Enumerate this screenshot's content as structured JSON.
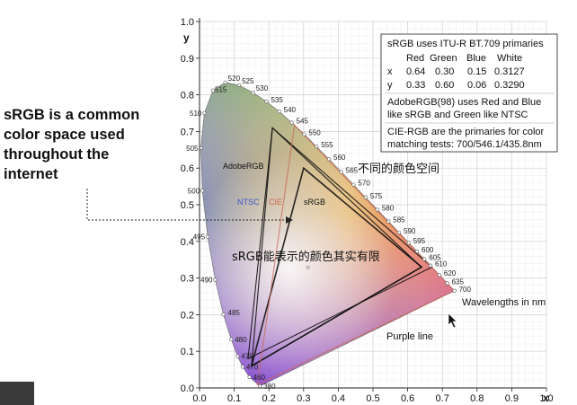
{
  "callout": {
    "lines": [
      "sRGB is a common",
      "color space used",
      "throughout the",
      "internet"
    ]
  },
  "axes": {
    "x_label": "x",
    "y_label": "y",
    "x_ticks": [
      "0.0",
      "0.1",
      "0.2",
      "0.3",
      "0.4",
      "0.5",
      "0.6",
      "0.7",
      "0.8",
      "0.9",
      "1.0"
    ],
    "y_ticks": [
      "0.0",
      "0.1",
      "0.2",
      "0.3",
      "0.4",
      "0.5",
      "0.6",
      "0.7",
      "0.8",
      "0.9",
      "1.0"
    ]
  },
  "legend": {
    "title": "sRGB uses ITU-R BT.709 primaries",
    "header": [
      "Red",
      "Green",
      "Blue",
      "White"
    ],
    "row_x": [
      "x",
      "0.64",
      "0.30",
      "0.15",
      "0.3127"
    ],
    "row_y": [
      "y",
      "0.33",
      "0.60",
      "0.06",
      "0.3290"
    ],
    "adobe_line1": "AdobeRGB(98) uses Red and Blue",
    "adobe_line2": "like sRGB and Green like NTSC",
    "cie_line1": "CIE-RGB are the primaries for color",
    "cie_line2": "matching tests: 700/546.1/435.8nm"
  },
  "labels": {
    "adobe": "AdobeRGB",
    "ntsc": "NTSC",
    "cie": "CIE",
    "srgb": "sRGB",
    "wavelengths": "Wavelengths in nm",
    "purple_line": "Purple line"
  },
  "overlays": {
    "gamut_note": "不同的颜色空间",
    "srgb_note": "sRGB能表示的颜色其实有限"
  },
  "colors": {
    "ntsc_label": "#3a55c8",
    "cie_label": "#d06048",
    "gamut_line": "#111111",
    "cie_line": "#c86a5a"
  },
  "chart_data": {
    "type": "diagram",
    "xlim": [
      0,
      1.0
    ],
    "ylim": [
      0,
      1.0
    ],
    "spectral_locus": [
      {
        "nm": "380",
        "x": 0.1741,
        "y": 0.005
      },
      {
        "nm": "460",
        "x": 0.144,
        "y": 0.0297
      },
      {
        "nm": "470",
        "x": 0.1241,
        "y": 0.0578
      },
      {
        "nm": "475",
        "x": 0.1096,
        "y": 0.0868
      },
      {
        "nm": "480",
        "x": 0.0913,
        "y": 0.1327
      },
      {
        "nm": "485",
        "x": 0.0687,
        "y": 0.2007
      },
      {
        "nm": "490",
        "x": 0.0454,
        "y": 0.295
      },
      {
        "nm": "495",
        "x": 0.0235,
        "y": 0.4127
      },
      {
        "nm": "500",
        "x": 0.0082,
        "y": 0.5384
      },
      {
        "nm": "505",
        "x": 0.0039,
        "y": 0.6548
      },
      {
        "nm": "510",
        "x": 0.0139,
        "y": 0.7502
      },
      {
        "nm": "515",
        "x": 0.0389,
        "y": 0.812
      },
      {
        "nm": "520",
        "x": 0.0743,
        "y": 0.8338
      },
      {
        "nm": "525",
        "x": 0.1142,
        "y": 0.8262
      },
      {
        "nm": "530",
        "x": 0.1547,
        "y": 0.8059
      },
      {
        "nm": "535",
        "x": 0.1929,
        "y": 0.7816
      },
      {
        "nm": "540",
        "x": 0.2296,
        "y": 0.7543
      },
      {
        "nm": "545",
        "x": 0.2658,
        "y": 0.7243
      },
      {
        "nm": "550",
        "x": 0.3016,
        "y": 0.6923
      },
      {
        "nm": "555",
        "x": 0.3373,
        "y": 0.6589
      },
      {
        "nm": "560",
        "x": 0.3731,
        "y": 0.6245
      },
      {
        "nm": "565",
        "x": 0.4087,
        "y": 0.5896
      },
      {
        "nm": "570",
        "x": 0.4441,
        "y": 0.5547
      },
      {
        "nm": "575",
        "x": 0.4788,
        "y": 0.5202
      },
      {
        "nm": "580",
        "x": 0.5125,
        "y": 0.4866
      },
      {
        "nm": "585",
        "x": 0.5448,
        "y": 0.4544
      },
      {
        "nm": "590",
        "x": 0.5752,
        "y": 0.4242
      },
      {
        "nm": "595",
        "x": 0.6029,
        "y": 0.3965
      },
      {
        "nm": "600",
        "x": 0.627,
        "y": 0.3725
      },
      {
        "nm": "605",
        "x": 0.6482,
        "y": 0.3514
      },
      {
        "nm": "610",
        "x": 0.6658,
        "y": 0.334
      },
      {
        "nm": "620",
        "x": 0.6915,
        "y": 0.3083
      },
      {
        "nm": "635",
        "x": 0.714,
        "y": 0.2859
      },
      {
        "nm": "700",
        "x": 0.7347,
        "y": 0.2653
      }
    ],
    "gamuts": [
      {
        "name": "sRGB",
        "points": [
          [
            0.64,
            0.33
          ],
          [
            0.3,
            0.6
          ],
          [
            0.15,
            0.06
          ]
        ]
      },
      {
        "name": "AdobeRGB",
        "points": [
          [
            0.64,
            0.33
          ],
          [
            0.21,
            0.71
          ],
          [
            0.15,
            0.06
          ]
        ]
      },
      {
        "name": "NTSC",
        "points": [
          [
            0.67,
            0.33
          ],
          [
            0.21,
            0.71
          ],
          [
            0.14,
            0.08
          ]
        ]
      },
      {
        "name": "CIE",
        "points": [
          [
            0.7347,
            0.2653
          ],
          [
            0.2738,
            0.7174
          ],
          [
            0.1666,
            0.0089
          ]
        ]
      }
    ]
  }
}
